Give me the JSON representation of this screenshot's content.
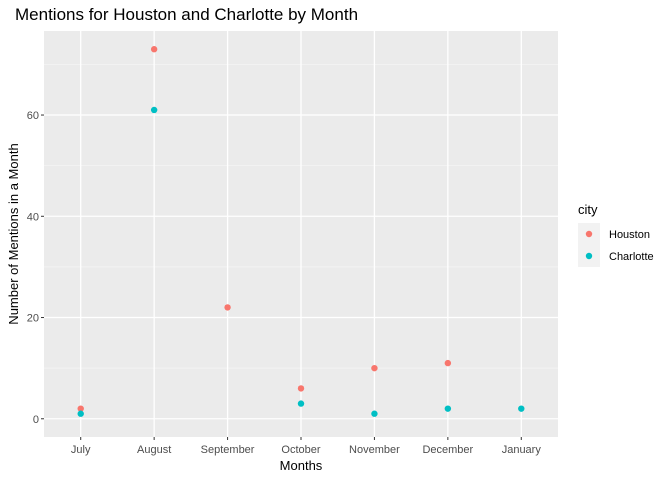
{
  "chart_data": {
    "type": "scatter",
    "title": "Mentions for Houston and Charlotte by Month",
    "xlabel": "Months",
    "ylabel": "Number of Mentions in a Month",
    "categories": [
      "July",
      "August",
      "September",
      "October",
      "November",
      "December",
      "January"
    ],
    "y_ticks": [
      "0",
      "20",
      "40",
      "60"
    ],
    "ylim": [
      -3.6,
      76.6
    ],
    "grid": true,
    "legend": {
      "title": "city",
      "placement": "right"
    },
    "series": [
      {
        "name": "Houston",
        "color": "#F8766D",
        "points": [
          {
            "x": "July",
            "y": 2
          },
          {
            "x": "August",
            "y": 73
          },
          {
            "x": "September",
            "y": 22
          },
          {
            "x": "October",
            "y": 6
          },
          {
            "x": "November",
            "y": 10
          },
          {
            "x": "December",
            "y": 11
          }
        ]
      },
      {
        "name": "Charlotte",
        "color": "#00BFC4",
        "points": [
          {
            "x": "July",
            "y": 1
          },
          {
            "x": "August",
            "y": 61
          },
          {
            "x": "October",
            "y": 3
          },
          {
            "x": "November",
            "y": 1
          },
          {
            "x": "December",
            "y": 2
          },
          {
            "x": "January",
            "y": 2
          }
        ]
      }
    ]
  }
}
